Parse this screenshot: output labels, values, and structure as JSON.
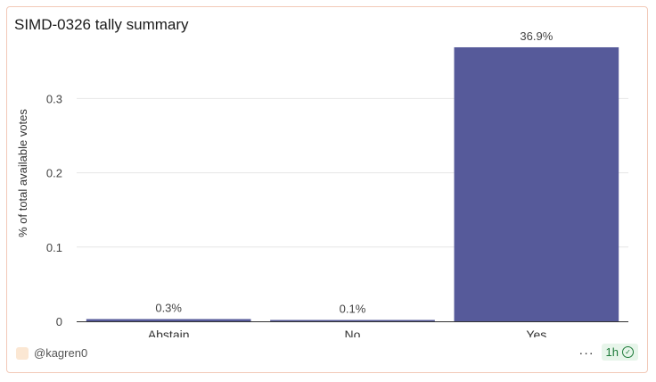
{
  "header": {
    "title": "SIMD-0326 tally summary"
  },
  "footer": {
    "author": "@kagren0",
    "time_badge": "1h",
    "more_label": "···"
  },
  "colors": {
    "bar": "#565a9a",
    "grid": "#e6e6e6",
    "axis": "#333333",
    "border": "#f2c9b8"
  },
  "icons": {
    "avatar": "avatar-icon",
    "more": "more-icon",
    "check": "check-circle-icon"
  },
  "chart_data": {
    "type": "bar",
    "categories": [
      "Abstain",
      "No",
      "Yes"
    ],
    "values": [
      0.003,
      0.001,
      0.369
    ],
    "data_labels": [
      "0.3%",
      "0.1%",
      "36.9%"
    ],
    "title": "SIMD-0326 tally summary",
    "xlabel": "",
    "ylabel": "% of total available votes",
    "ylim": [
      0,
      0.375
    ],
    "yticks": [
      0,
      0.1,
      0.2,
      0.3
    ],
    "ytick_labels": [
      "0",
      "0.1",
      "0.2",
      "0.3"
    ],
    "grid": true,
    "legend": "none"
  }
}
